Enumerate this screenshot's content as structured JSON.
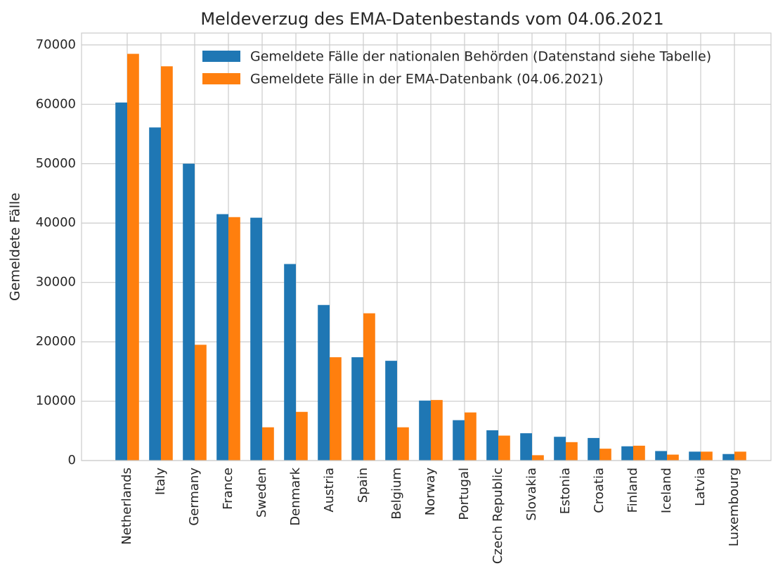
{
  "chart_data": {
    "type": "bar",
    "title": "Meldeverzug des EMA-Datenbestands vom 04.06.2021",
    "ylabel": "Gemeldete Fälle",
    "categories": [
      "Netherlands",
      "Italy",
      "Germany",
      "France",
      "Sweden",
      "Denmark",
      "Austria",
      "Spain",
      "Belgium",
      "Norway",
      "Portugal",
      "Czech Republic",
      "Slovakia",
      "Estonia",
      "Croatia",
      "Finland",
      "Iceland",
      "Latvia",
      "Luxembourg"
    ],
    "series": [
      {
        "name": "Gemeldete Fälle der nationalen Behörden (Datenstand siehe Tabelle)",
        "color": "#1f77b4",
        "values": [
          60300,
          56100,
          50000,
          41500,
          40900,
          33100,
          26200,
          17400,
          16800,
          10100,
          6800,
          5100,
          4600,
          4000,
          3800,
          2400,
          1600,
          1500,
          1100
        ]
      },
      {
        "name": "Gemeldete Fälle in der EMA-Datenbank (04.06.2021)",
        "color": "#ff7f0e",
        "values": [
          68500,
          66400,
          19500,
          41000,
          5600,
          8200,
          17400,
          24800,
          5600,
          10200,
          8100,
          4200,
          900,
          3100,
          2000,
          2500,
          1000,
          1500,
          1500
        ]
      }
    ],
    "ylim": [
      0,
      72000
    ],
    "yticks": [
      0,
      10000,
      20000,
      30000,
      40000,
      50000,
      60000,
      70000
    ],
    "grid": true,
    "legend": "upper right"
  }
}
